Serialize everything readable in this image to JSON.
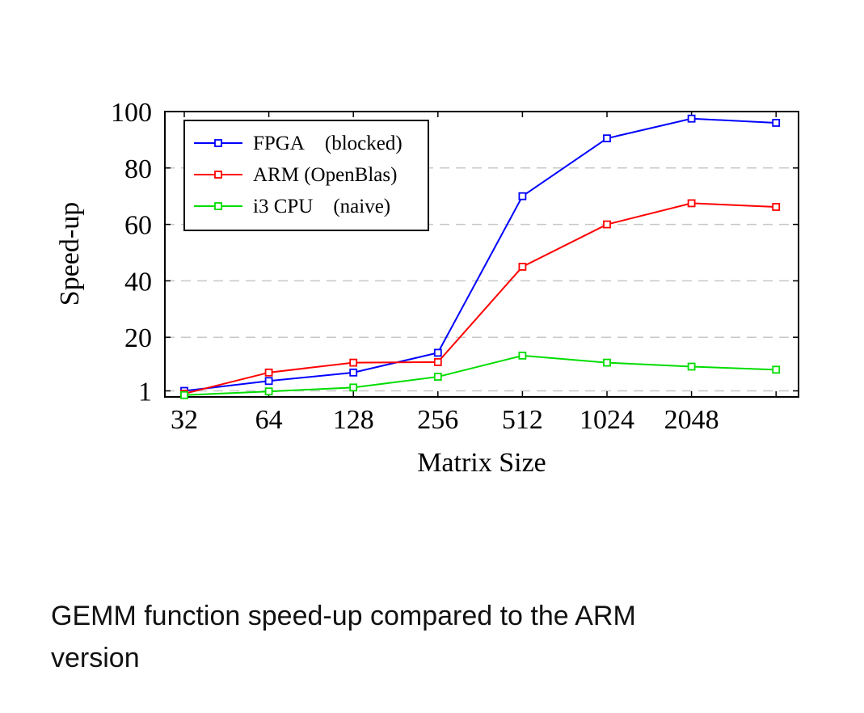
{
  "chart_data": {
    "type": "line",
    "xlabel": "Matrix Size",
    "ylabel": "Speed-up",
    "x_tick_labels": [
      "32",
      "64",
      "128",
      "256",
      "512",
      "1024",
      "2048"
    ],
    "y_tick_labels": [
      "1",
      "20",
      "40",
      "60",
      "80",
      "100"
    ],
    "y_ticks": [
      1,
      20,
      40,
      60,
      80,
      100
    ],
    "x": [
      32,
      64,
      128,
      256,
      512,
      1024,
      2048,
      4096
    ],
    "ylim": [
      0,
      100
    ],
    "xscale": "log2",
    "grid": "horizontal dashed",
    "legend_position": "top-left",
    "series": [
      {
        "name": "FPGA (blocked)",
        "color": "#0000ff",
        "values": [
          1,
          4.5,
          7.5,
          14.5,
          70,
          90.5,
          97.5,
          96
        ]
      },
      {
        "name": "ARM (OpenBlas)",
        "color": "#ff0000",
        "values": [
          0,
          7.5,
          11,
          11.2,
          45,
          60,
          67.5,
          66.2
        ]
      },
      {
        "name": "i3 CPU (naive)",
        "color": "#00dd00",
        "values": [
          -0.5,
          0.8,
          2.2,
          6,
          13.5,
          11,
          9.6,
          8.5
        ]
      }
    ]
  },
  "caption": {
    "line1": "GEMM function speed-up compared to the ARM",
    "line2": "version"
  }
}
